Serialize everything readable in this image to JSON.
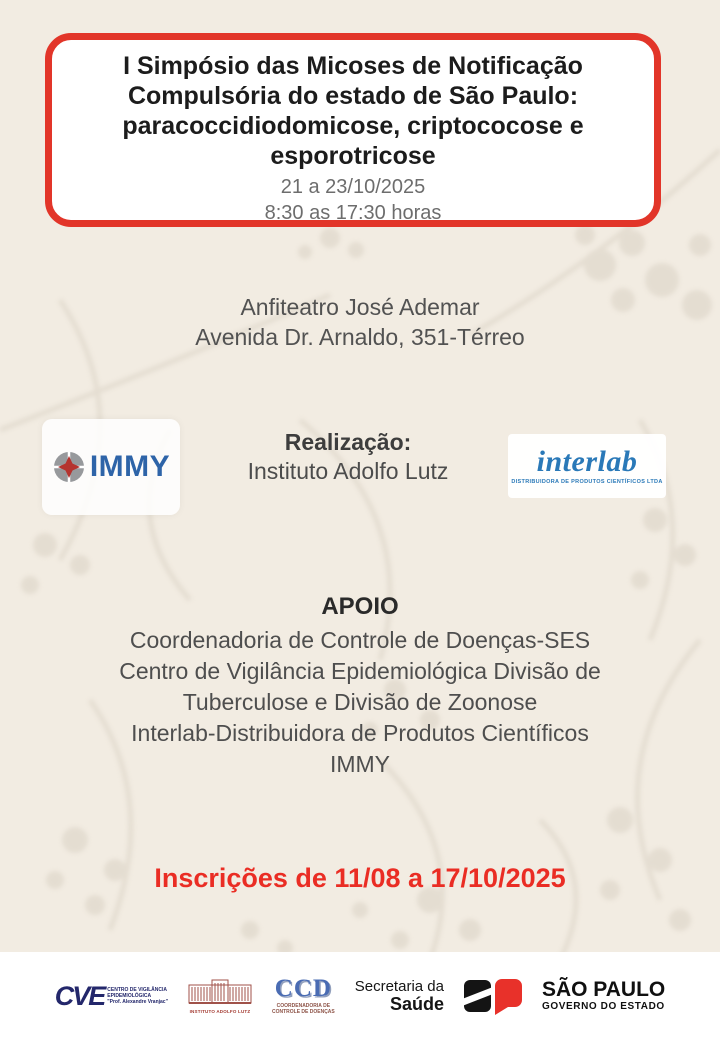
{
  "event": {
    "title_lines": [
      "I Simpósio das Micoses de Notificação",
      "Compulsória do estado de São Paulo:",
      "paracoccidiodomicose, criptococose e",
      "esporotricose"
    ],
    "date_range": "21 a 23/10/2025",
    "time_range": "8:30 as 17:30 horas"
  },
  "venue": {
    "lines": [
      "Anfiteatro José Ademar",
      "Avenida Dr. Arnaldo, 351-Térreo"
    ]
  },
  "organizer": {
    "label": "Realização:",
    "name": "Instituto Adolfo Lutz"
  },
  "logos": {
    "immy": {
      "text": "IMMY"
    },
    "interlab": {
      "name": "interlab",
      "subtitle": "DISTRIBUIDORA DE PRODUTOS CIENTÍFICOS LTDA"
    }
  },
  "support": {
    "heading": "APOIO",
    "lines": [
      "Coordenadoria de Controle de Doenças-SES",
      "Centro de Vigilância Epidemiológica Divisão de",
      "Tuberculose e Divisão de Zoonose",
      "Interlab-Distribuidora de Produtos Científicos",
      "IMMY"
    ]
  },
  "registration": {
    "text": "Inscrições de 11/08 a 17/10/2025"
  },
  "footer": {
    "cve": {
      "acronym": "CVE",
      "lines": [
        "CENTRO DE VIGILÂNCIA",
        "EPIDEMIOLÓGICA",
        "\"Prof. Alexandre Vranjac\""
      ]
    },
    "ial": {
      "caption": "INSTITUTO ADOLFO LUTZ"
    },
    "ccd": {
      "acronym": "CCD",
      "lines": [
        "COORDENADORIA DE",
        "CONTROLE DE DOENÇAS"
      ]
    },
    "secretaria": {
      "line1": "Secretaria da",
      "line2": "Saúde"
    },
    "sp": {
      "title": "SÃO PAULO",
      "subtitle": "GOVERNO DO ESTADO"
    }
  },
  "colors": {
    "background": "#f2ece2",
    "accent_red_border": "#e23529",
    "accent_red_text": "#ea2d24",
    "immy_blue": "#2e64a8",
    "interlab_blue": "#2a79b8",
    "cve_navy": "#23276b",
    "ccd_blue": "#4a6cb3",
    "text_dark": "#1c1c1c",
    "text_gray": "#4e4e4e"
  }
}
